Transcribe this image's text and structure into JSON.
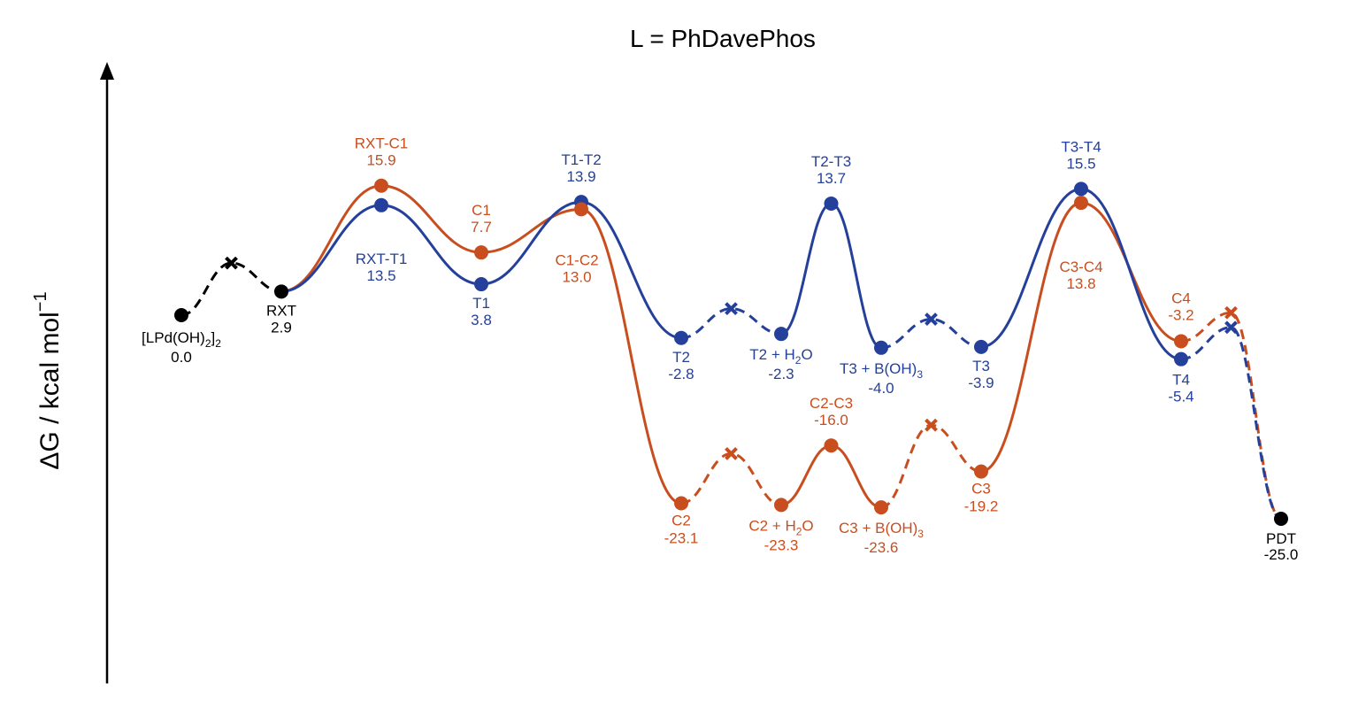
{
  "chart_data": {
    "type": "line",
    "title": "L = PhDavePhos",
    "ylabel": "ΔG / kcal mol",
    "ylabel_superscript": "−1",
    "xlabel": "",
    "ylim": [
      -30,
      19
    ],
    "grid": false,
    "legend": "none",
    "colors": {
      "black": "#000000",
      "blue": "#25409a",
      "orange": "#c84e1f"
    },
    "marker_styles": {
      "point": "circle",
      "intermediate": "x"
    },
    "points": [
      {
        "id": "LPd",
        "name": "[LPd(OH)",
        "sub": "2",
        "name2": "]",
        "sub2": "2",
        "value": "0.0",
        "x": 1,
        "y": 0.0,
        "color": "black"
      },
      {
        "id": "RXT",
        "name": "RXT",
        "value": "2.9",
        "x": 3,
        "y": 2.9,
        "color": "black"
      },
      {
        "id": "RXT-C1",
        "name": "RXT-C1",
        "value": "15.9",
        "x": 5,
        "y": 15.9,
        "color": "orange"
      },
      {
        "id": "RXT-T1",
        "name": "RXT-T1",
        "value": "13.5",
        "x": 5,
        "y": 13.5,
        "color": "blue"
      },
      {
        "id": "C1",
        "name": "C1",
        "value": "7.7",
        "x": 7,
        "y": 7.7,
        "color": "orange"
      },
      {
        "id": "T1",
        "name": "T1",
        "value": "3.8",
        "x": 7,
        "y": 3.8,
        "color": "blue"
      },
      {
        "id": "T1-T2",
        "name": "T1-T2",
        "value": "13.9",
        "x": 9,
        "y": 13.9,
        "color": "blue"
      },
      {
        "id": "C1-C2",
        "name": "C1-C2",
        "value": "13.0",
        "x": 9,
        "y": 13.0,
        "color": "orange"
      },
      {
        "id": "T2",
        "name": "T2",
        "value": "-2.8",
        "x": 11,
        "y": -2.8,
        "color": "blue"
      },
      {
        "id": "C2",
        "name": "C2",
        "value": "-23.1",
        "x": 11,
        "y": -23.1,
        "color": "orange"
      },
      {
        "id": "T2H2O",
        "name": "T2 + H",
        "sub": "2",
        "name2": "O",
        "value": "-2.3",
        "x": 13,
        "y": -2.3,
        "color": "blue"
      },
      {
        "id": "C2H2O",
        "name": "C2 + H",
        "sub": "2",
        "name2": "O",
        "value": "-23.3",
        "x": 13,
        "y": -23.3,
        "color": "orange"
      },
      {
        "id": "T2-T3",
        "name": "T2-T3",
        "value": "13.7",
        "x": 14,
        "y": 13.7,
        "color": "blue"
      },
      {
        "id": "C2-C3",
        "name": "C2-C3",
        "value": "-16.0",
        "x": 14,
        "y": -16.0,
        "color": "orange"
      },
      {
        "id": "T3BOH",
        "name": "T3 + B(OH)",
        "sub": "3",
        "value": "-4.0",
        "x": 15,
        "y": -4.0,
        "color": "blue"
      },
      {
        "id": "C3BOH",
        "name": "C3 + B(OH)",
        "sub": "3",
        "value": "-23.6",
        "x": 15,
        "y": -23.6,
        "color": "orange"
      },
      {
        "id": "T3",
        "name": "T3",
        "value": "-3.9",
        "x": 17,
        "y": -3.9,
        "color": "blue"
      },
      {
        "id": "C3",
        "name": "C3",
        "value": "-19.2",
        "x": 17,
        "y": -19.2,
        "color": "orange"
      },
      {
        "id": "T3-T4",
        "name": "T3-T4",
        "value": "15.5",
        "x": 19,
        "y": 15.5,
        "color": "blue"
      },
      {
        "id": "C3-C4",
        "name": "C3-C4",
        "value": "13.8",
        "x": 19,
        "y": 13.8,
        "color": "orange"
      },
      {
        "id": "C4",
        "name": "C4",
        "value": "-3.2",
        "x": 21,
        "y": -3.2,
        "color": "orange"
      },
      {
        "id": "T4",
        "name": "T4",
        "value": "-5.4",
        "x": 21,
        "y": -5.4,
        "color": "blue"
      },
      {
        "id": "PDT",
        "name": "PDT",
        "value": "-25.0",
        "x": 23,
        "y": -25.0,
        "color": "black"
      }
    ],
    "intermediates": [
      {
        "x": 2,
        "y": 6.4,
        "color": "black"
      },
      {
        "x": 12,
        "y": 0.8,
        "color": "blue"
      },
      {
        "x": 12,
        "y": -17.0,
        "color": "orange"
      },
      {
        "x": 16,
        "y": -0.5,
        "color": "blue"
      },
      {
        "x": 16,
        "y": -13.5,
        "color": "orange"
      },
      {
        "x": 22,
        "y": 0.3,
        "color": "orange"
      },
      {
        "x": 22,
        "y": -1.5,
        "color": "blue"
      }
    ],
    "series": [
      {
        "color": "black",
        "style": "dashed",
        "nodes": [
          [
            1,
            0.0
          ],
          [
            2,
            6.4,
            "x"
          ],
          [
            3,
            2.9
          ]
        ]
      },
      {
        "color": "orange",
        "style": "solid",
        "nodes": [
          [
            3,
            2.9
          ],
          [
            5,
            15.9
          ],
          [
            7,
            7.7
          ],
          [
            9,
            13.0
          ],
          [
            11,
            -23.1
          ]
        ]
      },
      {
        "color": "orange",
        "style": "dashed",
        "nodes": [
          [
            11,
            -23.1
          ],
          [
            12,
            -17.0,
            "x"
          ],
          [
            13,
            -23.3
          ]
        ]
      },
      {
        "color": "orange",
        "style": "solid",
        "nodes": [
          [
            13,
            -23.3
          ],
          [
            14,
            -16.0
          ],
          [
            15,
            -23.6
          ]
        ]
      },
      {
        "color": "orange",
        "style": "dashed",
        "nodes": [
          [
            15,
            -23.6
          ],
          [
            16,
            -13.5,
            "x"
          ],
          [
            17,
            -19.2
          ]
        ]
      },
      {
        "color": "orange",
        "style": "solid",
        "nodes": [
          [
            17,
            -19.2
          ],
          [
            19,
            13.8
          ],
          [
            21,
            -3.2
          ]
        ]
      },
      {
        "color": "orange",
        "style": "dashed",
        "nodes": [
          [
            21,
            -3.2
          ],
          [
            22,
            0.3,
            "x"
          ],
          [
            23,
            -25.0
          ]
        ]
      },
      {
        "color": "blue",
        "style": "solid",
        "nodes": [
          [
            3,
            2.9
          ],
          [
            5,
            13.5
          ],
          [
            7,
            3.8
          ],
          [
            9,
            13.9
          ],
          [
            11,
            -2.8
          ]
        ]
      },
      {
        "color": "blue",
        "style": "dashed",
        "nodes": [
          [
            11,
            -2.8
          ],
          [
            12,
            0.8,
            "x"
          ],
          [
            13,
            -2.3
          ]
        ]
      },
      {
        "color": "blue",
        "style": "solid",
        "nodes": [
          [
            13,
            -2.3
          ],
          [
            14,
            13.7
          ],
          [
            15,
            -4.0
          ]
        ]
      },
      {
        "color": "blue",
        "style": "dashed",
        "nodes": [
          [
            15,
            -4.0
          ],
          [
            16,
            -0.5,
            "x"
          ],
          [
            17,
            -3.9
          ]
        ]
      },
      {
        "color": "blue",
        "style": "solid",
        "nodes": [
          [
            17,
            -3.9
          ],
          [
            19,
            15.5
          ],
          [
            21,
            -5.4
          ]
        ]
      },
      {
        "color": "blue",
        "style": "dashed",
        "nodes": [
          [
            21,
            -5.4
          ],
          [
            22,
            -1.5,
            "x"
          ],
          [
            23,
            -25.0
          ]
        ]
      }
    ]
  }
}
